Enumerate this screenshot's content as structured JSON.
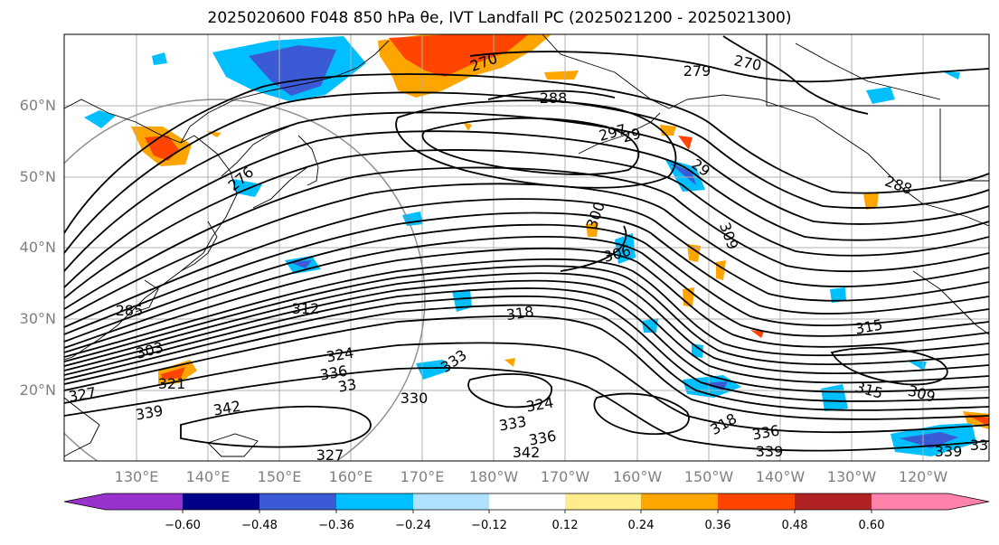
{
  "title": "2025020600 F048 850 hPa θe, IVT Landfall PC (2025021200 - 2025021300)",
  "lat_labels": [
    "60°N",
    "50°N",
    "40°N",
    "30°N",
    "20°N"
  ],
  "lon_labels": [
    "130°E",
    "140°E",
    "150°E",
    "160°E",
    "170°E",
    "180°W",
    "170°W",
    "160°W",
    "150°W",
    "140°W",
    "130°W",
    "120°W"
  ],
  "contour_labels": [
    "270",
    "279",
    "270",
    "288",
    "297",
    "29",
    "306",
    "300",
    "309",
    "312",
    "318",
    "315",
    "321",
    "324",
    "333",
    "330",
    "336",
    "327",
    "339",
    "342",
    "324",
    "333",
    "336",
    "339",
    "342",
    "327",
    "318",
    "336",
    "339",
    "309",
    "315",
    "276",
    "285",
    "303",
    "29",
    "288",
    "33",
    "33"
  ],
  "colorbar": {
    "tick_labels": [
      "−0.60",
      "−0.48",
      "−0.36",
      "−0.24",
      "−0.12",
      "0.12",
      "0.24",
      "0.36",
      "0.48",
      "0.60"
    ],
    "colors": [
      "#9932cc",
      "#00008b",
      "#3b5bd6",
      "#00bfff",
      "#b0e2ff",
      "#ffffff",
      "#ffec8b",
      "#ffa500",
      "#ff4500",
      "#b22222",
      "#ff82ab"
    ]
  }
}
